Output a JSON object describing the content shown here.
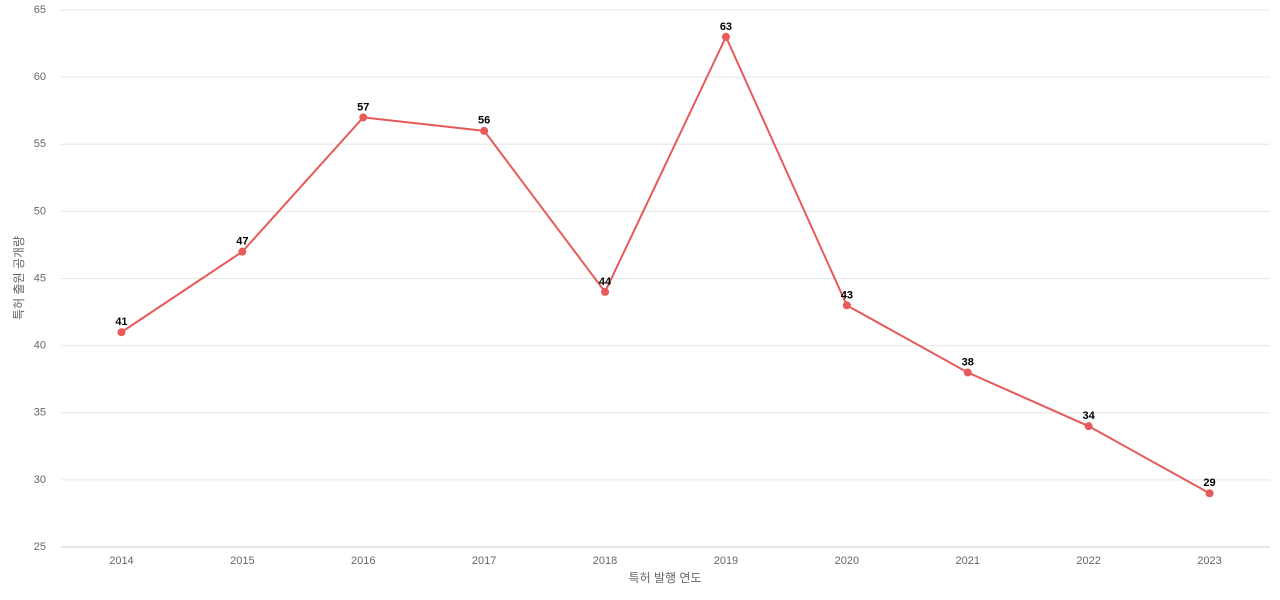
{
  "chart_data": {
    "type": "line",
    "x_label": "특허 발행 연도",
    "y_label": "특허 출원 공개량",
    "categories": [
      "2014",
      "2015",
      "2016",
      "2017",
      "2018",
      "2019",
      "2020",
      "2021",
      "2022",
      "2023"
    ],
    "values": [
      41,
      47,
      57,
      56,
      44,
      63,
      43,
      38,
      34,
      29
    ],
    "color": "#e85a5a",
    "ylim": [
      25,
      65
    ],
    "yticks": [
      25,
      30,
      35,
      40,
      45,
      50,
      55,
      60,
      65
    ],
    "grid": true
  }
}
